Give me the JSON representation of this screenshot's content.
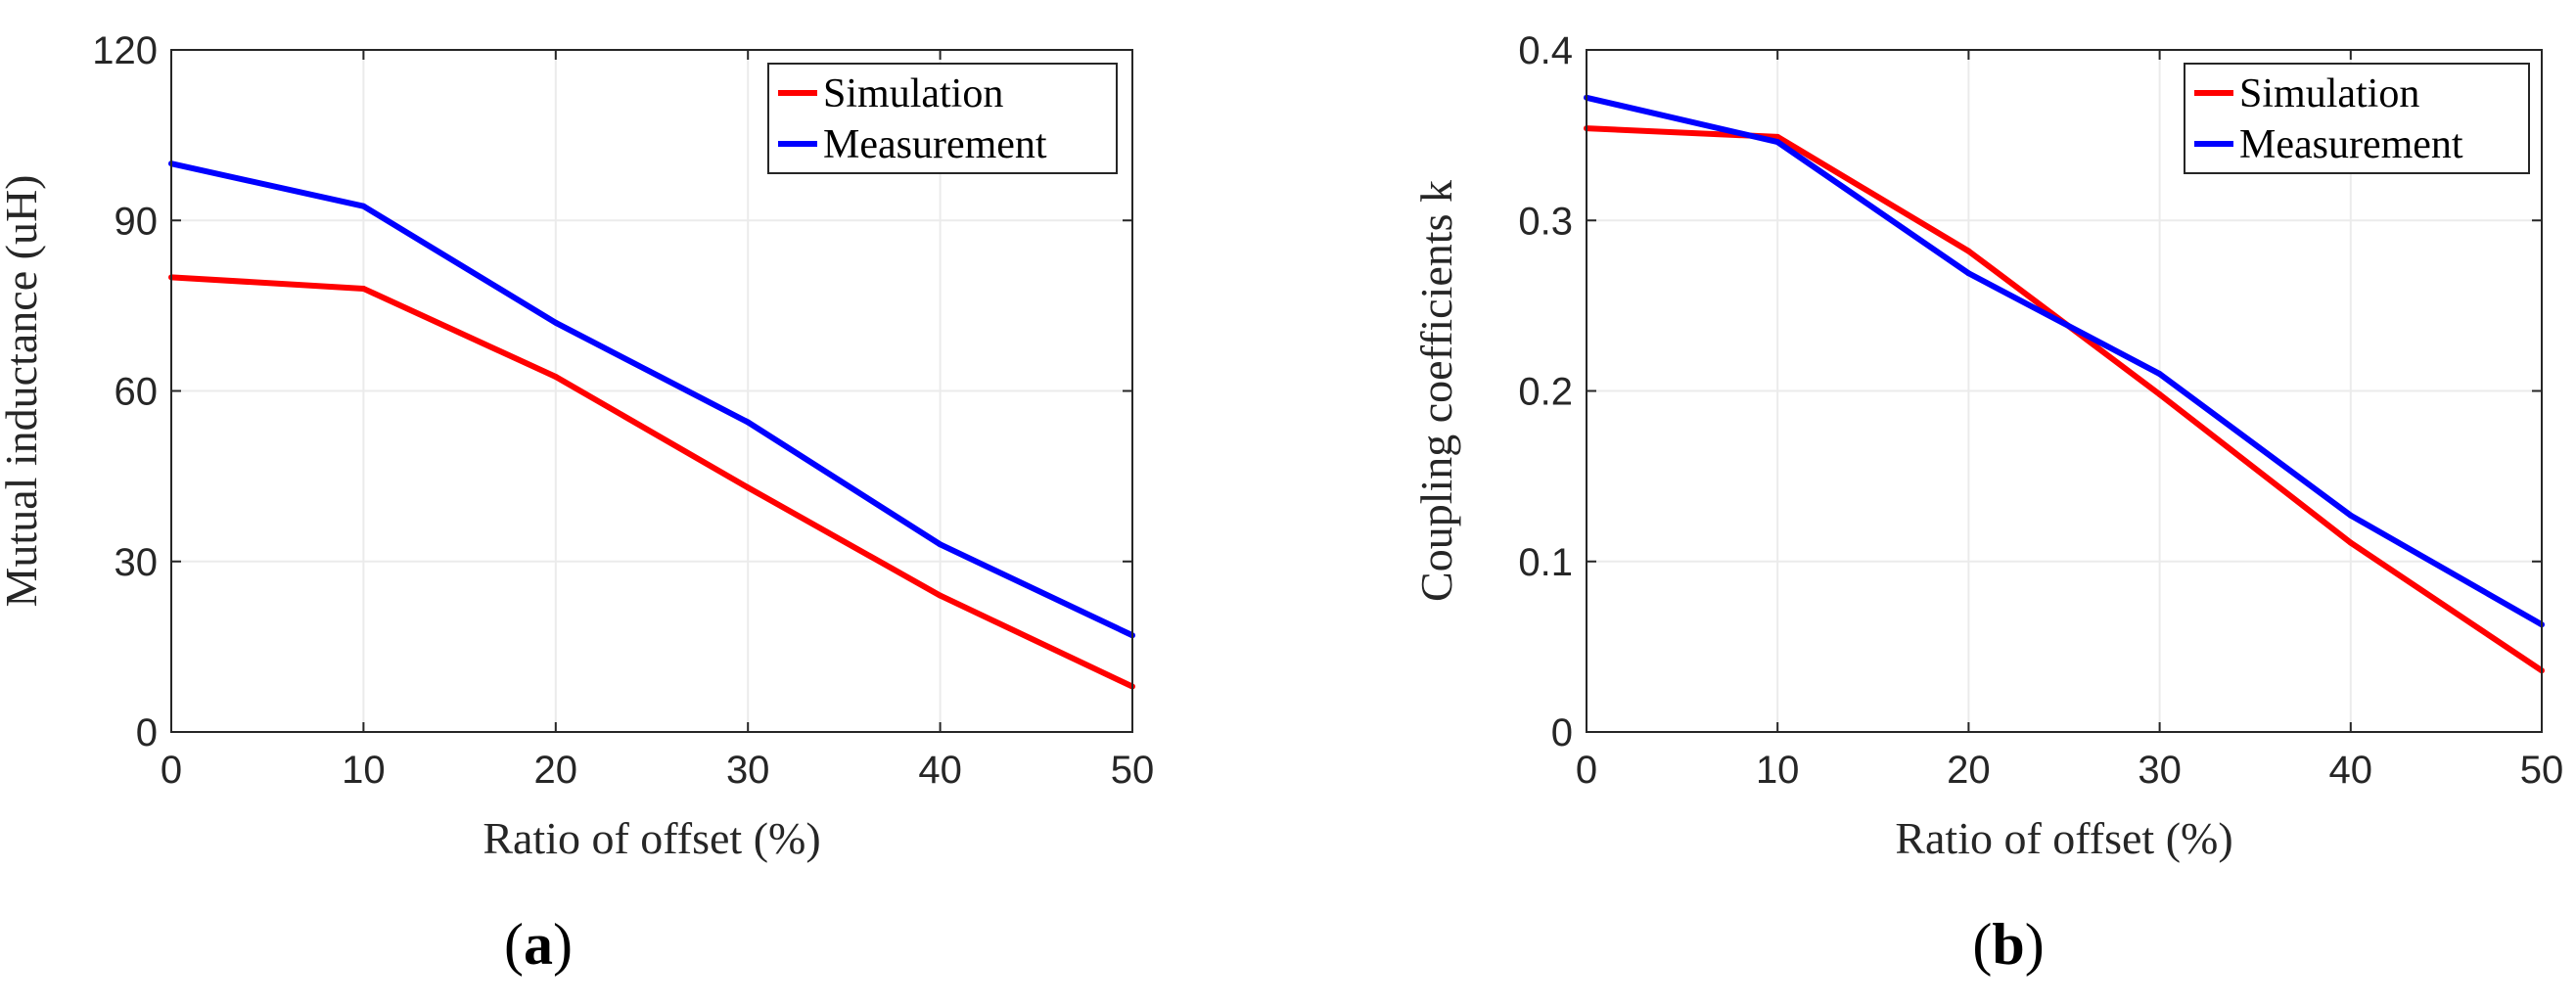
{
  "chart_data": [
    {
      "type": "line",
      "panel_label": "(a)",
      "panel_letter": "a",
      "title": "",
      "xlabel": "Ratio of offset (%)",
      "ylabel": "Mutual inductance (uH)",
      "x": [
        0,
        10,
        20,
        30,
        40,
        50
      ],
      "xlim": [
        0,
        50
      ],
      "ylim": [
        0,
        120
      ],
      "xticks": [
        0,
        10,
        20,
        30,
        40,
        50
      ],
      "yticks": [
        0,
        30,
        60,
        90,
        120
      ],
      "xtick_labels": [
        "0",
        "10",
        "20",
        "30",
        "40",
        "50"
      ],
      "ytick_labels": [
        "0",
        "30",
        "60",
        "90",
        "120"
      ],
      "grid": true,
      "legend_position": "top-right",
      "series": [
        {
          "name": "Simulation",
          "color": "#ff0000",
          "values": [
            80,
            78,
            62.5,
            43,
            24,
            8
          ]
        },
        {
          "name": "Measurement",
          "color": "#0000ff",
          "values": [
            100,
            92.5,
            72,
            54.5,
            33,
            17
          ]
        }
      ]
    },
    {
      "type": "line",
      "panel_label": "(b)",
      "panel_letter": "b",
      "title": "",
      "xlabel": "Ratio of offset (%)",
      "ylabel": "Coupling coefficients k",
      "x": [
        0,
        10,
        20,
        30,
        40,
        50
      ],
      "xlim": [
        0,
        50
      ],
      "ylim": [
        0,
        0.4
      ],
      "xticks": [
        0,
        10,
        20,
        30,
        40,
        50
      ],
      "yticks": [
        0,
        0.1,
        0.2,
        0.3,
        0.4
      ],
      "xtick_labels": [
        "0",
        "10",
        "20",
        "30",
        "40",
        "50"
      ],
      "ytick_labels": [
        "0",
        "0.1",
        "0.2",
        "0.3",
        "0.4"
      ],
      "grid": true,
      "legend_position": "top-right",
      "series": [
        {
          "name": "Simulation",
          "color": "#ff0000",
          "values": [
            0.354,
            0.349,
            0.282,
            0.198,
            0.111,
            0.036
          ]
        },
        {
          "name": "Measurement",
          "color": "#0000ff",
          "values": [
            0.372,
            0.346,
            0.269,
            0.21,
            0.127,
            0.063
          ]
        }
      ]
    }
  ]
}
